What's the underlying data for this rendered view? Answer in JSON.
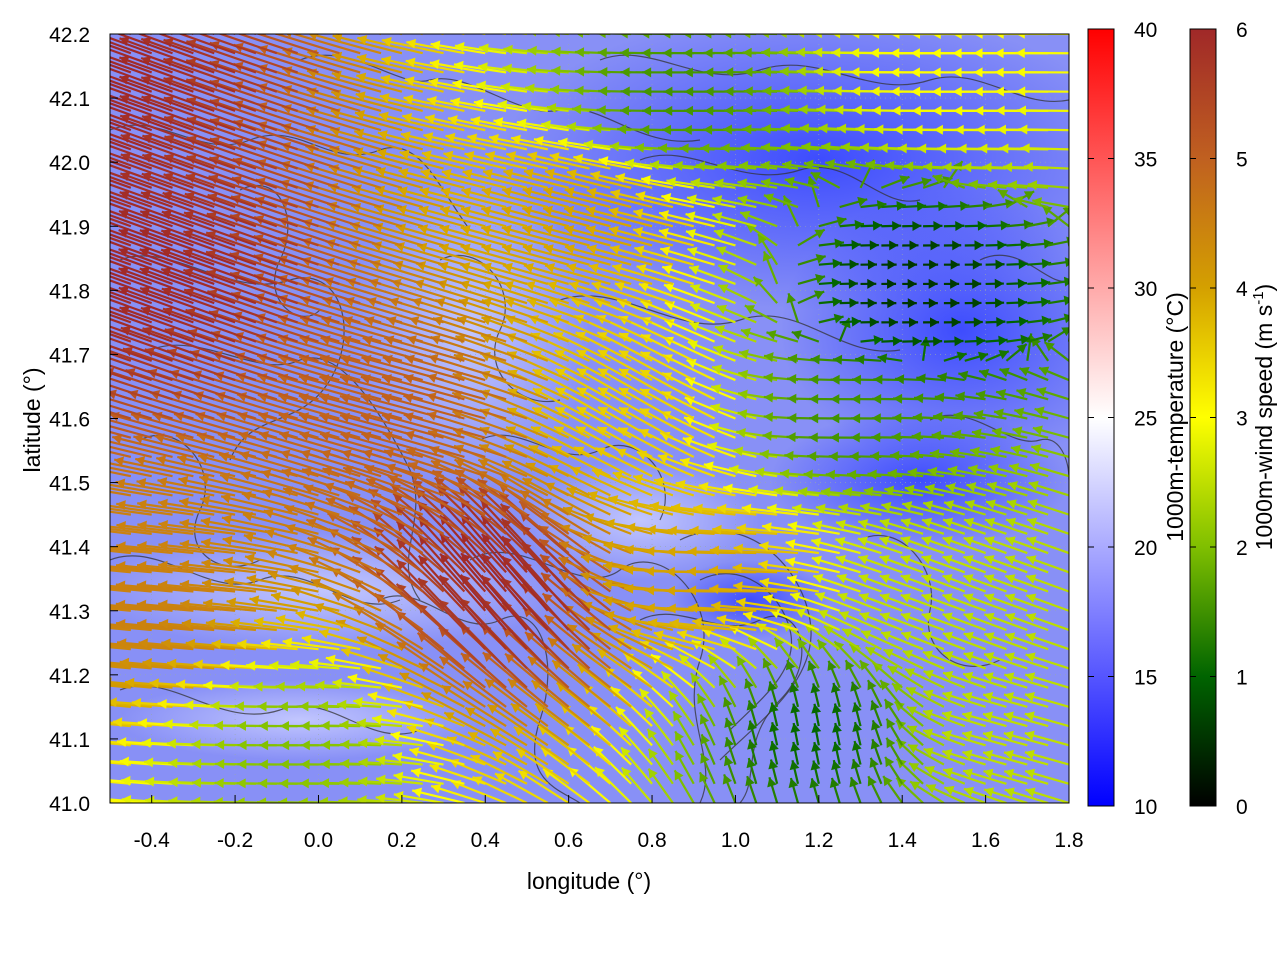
{
  "chart_data": {
    "type": "vector-field",
    "xlabel": "longitude (°)",
    "ylabel": "latitude (°)",
    "xlim": [
      -0.5,
      1.8
    ],
    "ylim": [
      41.0,
      42.2
    ],
    "x_ticks": [
      "-0.4",
      "-0.2",
      "0.0",
      "0.2",
      "0.4",
      "0.6",
      "0.8",
      "1.0",
      "1.2",
      "1.4",
      "1.6",
      "1.8"
    ],
    "x_tick_values": [
      -0.4,
      -0.2,
      0.0,
      0.2,
      0.4,
      0.6,
      0.8,
      1.0,
      1.2,
      1.4,
      1.6,
      1.8
    ],
    "y_ticks": [
      "41.0",
      "41.1",
      "41.2",
      "41.3",
      "41.4",
      "41.5",
      "41.6",
      "41.7",
      "41.8",
      "41.9",
      "42.0",
      "42.1",
      "42.2"
    ],
    "y_tick_values": [
      41.0,
      41.1,
      41.2,
      41.3,
      41.4,
      41.5,
      41.6,
      41.7,
      41.8,
      41.9,
      42.0,
      42.1,
      42.2
    ],
    "grid": true,
    "temperature_colorbar": {
      "label": "1000m-temperature (°C)",
      "range": [
        10,
        40
      ],
      "ticks": [
        "10",
        "15",
        "20",
        "25",
        "30",
        "35",
        "40"
      ],
      "tick_values": [
        10,
        15,
        20,
        25,
        30,
        35,
        40
      ],
      "colors": [
        "#0000ff",
        "#ffffff",
        "#ff0000"
      ]
    },
    "wind_colorbar": {
      "label_main": "1000m-wind speed (m s",
      "label_sup": "-1",
      "label_end": ")",
      "range": [
        0,
        6
      ],
      "ticks": [
        "0",
        "1",
        "2",
        "3",
        "4",
        "5",
        "6"
      ],
      "tick_values": [
        0,
        1,
        2,
        3,
        4,
        5,
        6
      ],
      "colors": [
        "#000000",
        "#006400",
        "#7fbf00",
        "#ffff00",
        "#d4a000",
        "#c06020",
        "#a02828"
      ]
    },
    "wind_field_samples": [
      {
        "lon": -0.45,
        "lat": 42.1,
        "speed": 6.0,
        "dir_deg": 160
      },
      {
        "lon": -0.3,
        "lat": 41.8,
        "speed": 6.0,
        "dir_deg": 160
      },
      {
        "lon": -0.3,
        "lat": 41.3,
        "speed": 4.5,
        "dir_deg": 175
      },
      {
        "lon": 0.0,
        "lat": 41.1,
        "speed": 2.0,
        "dir_deg": 180
      },
      {
        "lon": 0.3,
        "lat": 41.6,
        "speed": 5.0,
        "dir_deg": 165
      },
      {
        "lon": 0.5,
        "lat": 41.3,
        "speed": 6.0,
        "dir_deg": 130
      },
      {
        "lon": 0.7,
        "lat": 41.9,
        "speed": 4.0,
        "dir_deg": 165
      },
      {
        "lon": 0.8,
        "lat": 41.6,
        "speed": 3.5,
        "dir_deg": 150
      },
      {
        "lon": 0.9,
        "lat": 42.1,
        "speed": 1.5,
        "dir_deg": 180
      },
      {
        "lon": 1.0,
        "lat": 41.35,
        "speed": 4.0,
        "dir_deg": 180
      },
      {
        "lon": 1.2,
        "lat": 41.1,
        "speed": 1.0,
        "dir_deg": 100
      },
      {
        "lon": 1.3,
        "lat": 41.6,
        "speed": 1.5,
        "dir_deg": 180
      },
      {
        "lon": 1.4,
        "lat": 41.8,
        "speed": 0.5,
        "dir_deg": 0
      },
      {
        "lon": 1.5,
        "lat": 41.3,
        "speed": 2.5,
        "dir_deg": 160
      },
      {
        "lon": 1.6,
        "lat": 42.15,
        "speed": 3.0,
        "dir_deg": 180
      },
      {
        "lon": 1.7,
        "lat": 41.1,
        "speed": 2.5,
        "dir_deg": 165
      }
    ]
  }
}
